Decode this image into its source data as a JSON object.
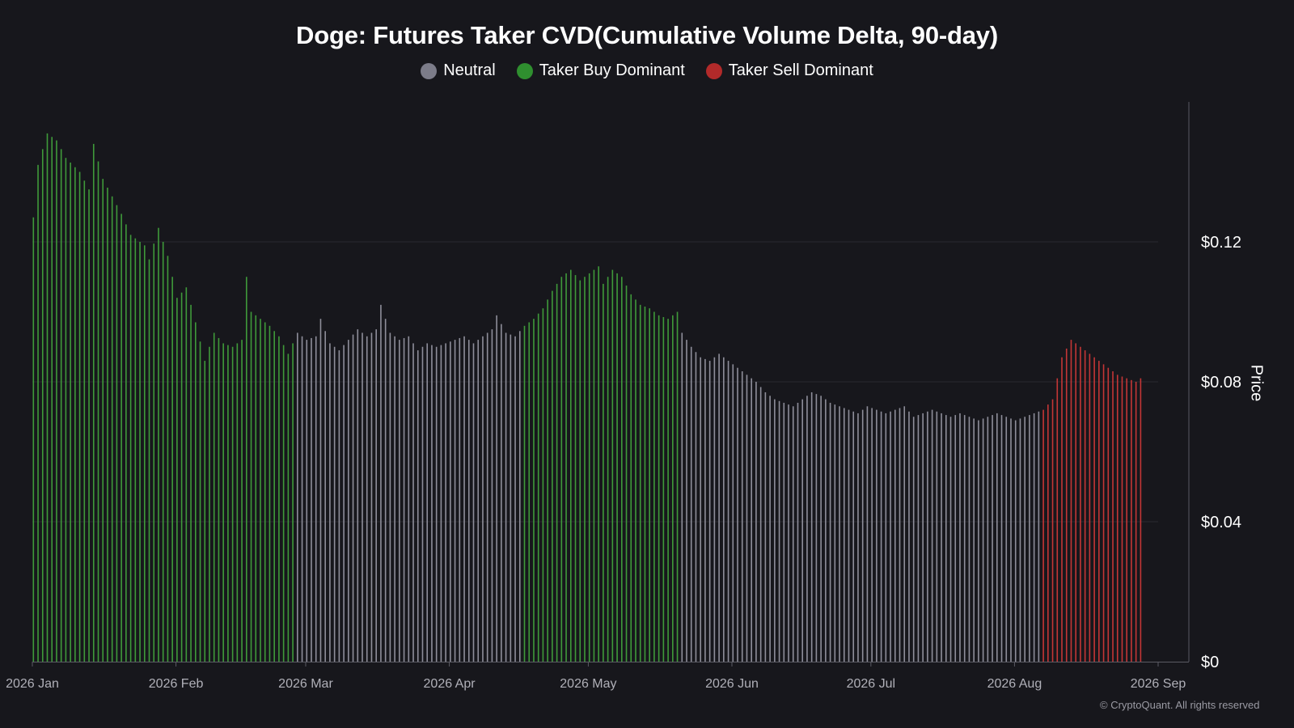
{
  "chart_data": {
    "type": "bar",
    "title": "Doge: Futures Taker CVD(Cumulative Volume Delta, 90-day)",
    "ylabel": "Price",
    "ylim": [
      0,
      0.16
    ],
    "yticks": [
      {
        "value": 0,
        "label": "$0"
      },
      {
        "value": 0.04,
        "label": "$0.04"
      },
      {
        "value": 0.08,
        "label": "$0.08"
      },
      {
        "value": 0.12,
        "label": "$0.12"
      }
    ],
    "xticks": [
      {
        "label": "2026 Jan",
        "day": 0
      },
      {
        "label": "2026 Feb",
        "day": 31
      },
      {
        "label": "2026 Mar",
        "day": 59
      },
      {
        "label": "2026 Apr",
        "day": 90
      },
      {
        "label": "2026 May",
        "day": 120
      },
      {
        "label": "2026 Jun",
        "day": 151
      },
      {
        "label": "2026 Jul",
        "day": 181
      },
      {
        "label": "2026 Aug",
        "day": 212
      },
      {
        "label": "2026 Sep",
        "day": 243
      }
    ],
    "legend": [
      {
        "name": "Neutral",
        "color": "#7c7c89"
      },
      {
        "name": "Taker Buy Dominant",
        "color": "#2f8f2f"
      },
      {
        "name": "Taker Sell Dominant",
        "color": "#b22a2a"
      }
    ],
    "bar_colors": {
      "neutral": "#8e8e9a",
      "buy": "#3f9a3a",
      "sell": "#c43636"
    },
    "price_anchors": [
      [
        0,
        0.127
      ],
      [
        1,
        0.142
      ],
      [
        3,
        0.151
      ],
      [
        5,
        0.149
      ],
      [
        7,
        0.144
      ],
      [
        10,
        0.14
      ],
      [
        12,
        0.135
      ],
      [
        13,
        0.148
      ],
      [
        15,
        0.138
      ],
      [
        17,
        0.133
      ],
      [
        19,
        0.128
      ],
      [
        21,
        0.122
      ],
      [
        24,
        0.119
      ],
      [
        25,
        0.115
      ],
      [
        27,
        0.124
      ],
      [
        29,
        0.116
      ],
      [
        31,
        0.104
      ],
      [
        33,
        0.107
      ],
      [
        35,
        0.097
      ],
      [
        37,
        0.086
      ],
      [
        39,
        0.094
      ],
      [
        41,
        0.091
      ],
      [
        43,
        0.09
      ],
      [
        45,
        0.092
      ],
      [
        46,
        0.11
      ],
      [
        47,
        0.1
      ],
      [
        49,
        0.098
      ],
      [
        51,
        0.096
      ],
      [
        53,
        0.093
      ],
      [
        55,
        0.088
      ],
      [
        57,
        0.094
      ],
      [
        59,
        0.092
      ],
      [
        61,
        0.093
      ],
      [
        62,
        0.098
      ],
      [
        64,
        0.091
      ],
      [
        66,
        0.089
      ],
      [
        68,
        0.092
      ],
      [
        70,
        0.095
      ],
      [
        72,
        0.093
      ],
      [
        74,
        0.095
      ],
      [
        75,
        0.102
      ],
      [
        77,
        0.094
      ],
      [
        79,
        0.092
      ],
      [
        81,
        0.093
      ],
      [
        83,
        0.089
      ],
      [
        85,
        0.091
      ],
      [
        87,
        0.09
      ],
      [
        89,
        0.091
      ],
      [
        91,
        0.092
      ],
      [
        93,
        0.093
      ],
      [
        95,
        0.091
      ],
      [
        97,
        0.093
      ],
      [
        99,
        0.095
      ],
      [
        100,
        0.099
      ],
      [
        102,
        0.094
      ],
      [
        104,
        0.093
      ],
      [
        106,
        0.096
      ],
      [
        108,
        0.098
      ],
      [
        110,
        0.101
      ],
      [
        112,
        0.106
      ],
      [
        114,
        0.11
      ],
      [
        116,
        0.112
      ],
      [
        118,
        0.109
      ],
      [
        120,
        0.111
      ],
      [
        122,
        0.113
      ],
      [
        123,
        0.108
      ],
      [
        125,
        0.112
      ],
      [
        127,
        0.11
      ],
      [
        129,
        0.105
      ],
      [
        131,
        0.102
      ],
      [
        133,
        0.101
      ],
      [
        135,
        0.099
      ],
      [
        137,
        0.098
      ],
      [
        139,
        0.1
      ],
      [
        140,
        0.094
      ],
      [
        142,
        0.09
      ],
      [
        144,
        0.087
      ],
      [
        146,
        0.086
      ],
      [
        148,
        0.088
      ],
      [
        150,
        0.086
      ],
      [
        152,
        0.084
      ],
      [
        154,
        0.082
      ],
      [
        156,
        0.08
      ],
      [
        158,
        0.077
      ],
      [
        160,
        0.075
      ],
      [
        162,
        0.074
      ],
      [
        164,
        0.073
      ],
      [
        166,
        0.075
      ],
      [
        168,
        0.077
      ],
      [
        170,
        0.076
      ],
      [
        172,
        0.074
      ],
      [
        174,
        0.073
      ],
      [
        176,
        0.072
      ],
      [
        178,
        0.071
      ],
      [
        180,
        0.073
      ],
      [
        182,
        0.072
      ],
      [
        184,
        0.071
      ],
      [
        186,
        0.072
      ],
      [
        188,
        0.073
      ],
      [
        190,
        0.07
      ],
      [
        192,
        0.071
      ],
      [
        194,
        0.072
      ],
      [
        196,
        0.071
      ],
      [
        198,
        0.07
      ],
      [
        200,
        0.071
      ],
      [
        202,
        0.07
      ],
      [
        204,
        0.069
      ],
      [
        206,
        0.07
      ],
      [
        208,
        0.071
      ],
      [
        210,
        0.07
      ],
      [
        212,
        0.069
      ],
      [
        214,
        0.07
      ],
      [
        216,
        0.071
      ],
      [
        218,
        0.072
      ],
      [
        220,
        0.075
      ],
      [
        222,
        0.087
      ],
      [
        224,
        0.092
      ],
      [
        226,
        0.09
      ],
      [
        228,
        0.088
      ],
      [
        230,
        0.086
      ],
      [
        232,
        0.084
      ],
      [
        234,
        0.082
      ],
      [
        236,
        0.081
      ],
      [
        238,
        0.08
      ],
      [
        239,
        0.081
      ]
    ],
    "dominance_segments": [
      {
        "from": 0,
        "to": 56,
        "state": "buy"
      },
      {
        "from": 57,
        "to": 70,
        "state": "neutral"
      },
      {
        "from": 71,
        "to": 105,
        "state": "neutral"
      },
      {
        "from": 106,
        "to": 132,
        "state": "buy"
      },
      {
        "from": 133,
        "to": 139,
        "state": "buy"
      },
      {
        "from": 140,
        "to": 217,
        "state": "neutral"
      },
      {
        "from": 218,
        "to": 239,
        "state": "sell"
      }
    ]
  },
  "footer": {
    "copyright": "© CryptoQuant. All rights reserved"
  }
}
